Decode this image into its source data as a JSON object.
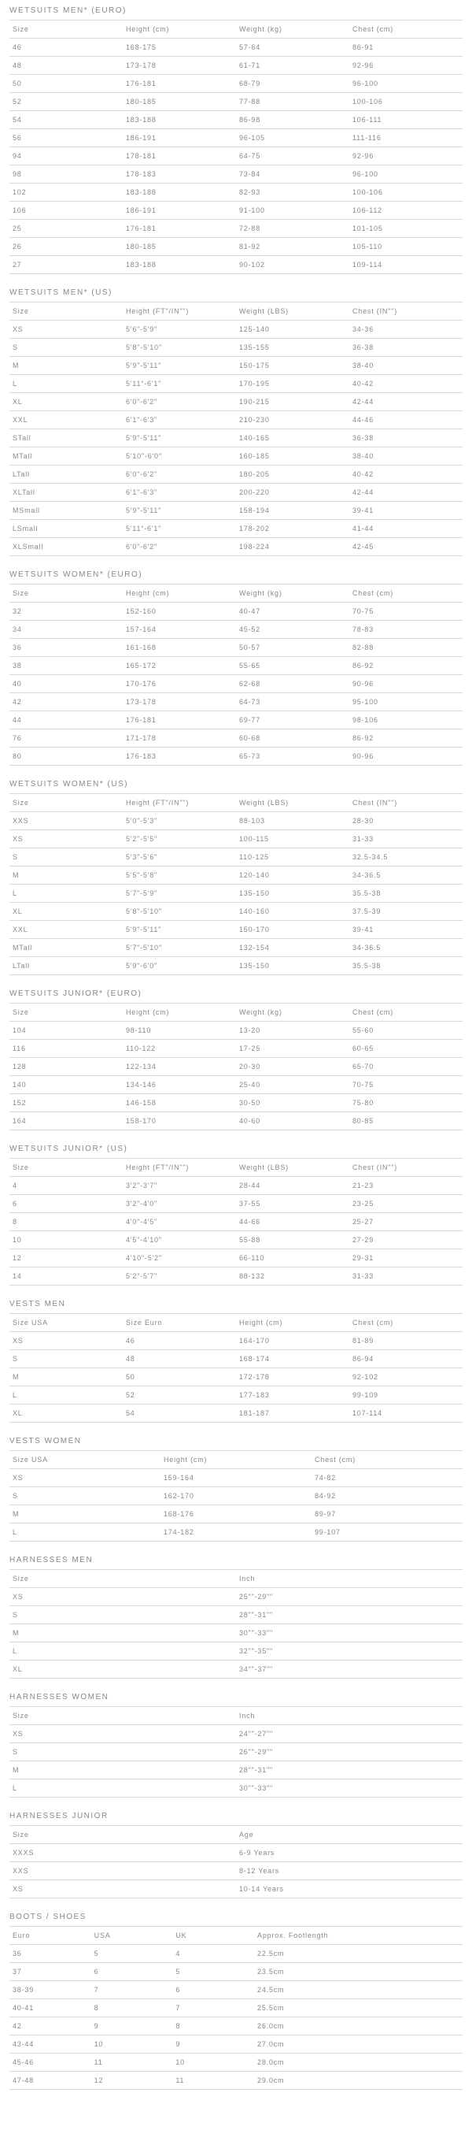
{
  "sections": [
    {
      "title": "WETSUITS MEN* (EURO)",
      "columns": [
        "Size",
        "Height (cm)",
        "Weight (kg)",
        "Chest (cm)"
      ],
      "rows": [
        [
          "46",
          "168-175",
          "57-64",
          "86-91"
        ],
        [
          "48",
          "173-178",
          "61-71",
          "92-96"
        ],
        [
          "50",
          "176-181",
          "68-79",
          "96-100"
        ],
        [
          "52",
          "180-185",
          "77-88",
          "100-106"
        ],
        [
          "54",
          "183-188",
          "86-98",
          "106-111"
        ],
        [
          "56",
          "186-191",
          "96-105",
          "111-116"
        ],
        [
          "94",
          "178-181",
          "64-75",
          "92-96"
        ],
        [
          "98",
          "178-183",
          "73-84",
          "96-100"
        ],
        [
          "102",
          "183-188",
          "82-93",
          "100-106"
        ],
        [
          "106",
          "186-191",
          "91-100",
          "106-112"
        ],
        [
          "25",
          "176-181",
          "72-88",
          "101-105"
        ],
        [
          "26",
          "180-185",
          "81-92",
          "105-110"
        ],
        [
          "27",
          "183-188",
          "90-102",
          "109-114"
        ]
      ]
    },
    {
      "title": "WETSUITS MEN* (US)",
      "columns": [
        "Size",
        "Height (FT\"/IN\"\")",
        "Weight (LBS)",
        "Chest (IN\"\")"
      ],
      "rows": [
        [
          "XS",
          "5'6\"-5'9\"",
          "125-140",
          "34-36"
        ],
        [
          "S",
          "5'8\"-5'10\"",
          "135-155",
          "36-38"
        ],
        [
          "M",
          "5'9\"-5'11\"",
          "150-175",
          "38-40"
        ],
        [
          "L",
          "5'11\"-6'1\"",
          "170-195",
          "40-42"
        ],
        [
          "XL",
          "6'0\"-6'2\"",
          "190-215",
          "42-44"
        ],
        [
          "XXL",
          "6'1\"-6'3\"",
          "210-230",
          "44-46"
        ],
        [
          "STall",
          "5'9\"-5'11\"",
          "140-165",
          "36-38"
        ],
        [
          "MTall",
          "5'10\"-6'0\"",
          "160-185",
          "38-40"
        ],
        [
          "LTall",
          "6'0\"-6'2\"",
          "180-205",
          "40-42"
        ],
        [
          "XLTall",
          "6'1\"-6'3\"",
          "200-220",
          "42-44"
        ],
        [
          "MSmall",
          "5'9\"-5'11\"",
          "158-194",
          "39-41"
        ],
        [
          "LSmall",
          "5'11\"-6'1\"",
          "178-202",
          "41-44"
        ],
        [
          "XLSmall",
          "6'0\"-6'2\"",
          "198-224",
          "42-45"
        ]
      ]
    },
    {
      "title": "WETSUITS WOMEN* (EURO)",
      "columns": [
        "Size",
        "Height (cm)",
        "Weight (kg)",
        "Chest (cm)"
      ],
      "rows": [
        [
          "32",
          "152-160",
          "40-47",
          "70-75"
        ],
        [
          "34",
          "157-164",
          "45-52",
          "78-83"
        ],
        [
          "36",
          "161-168",
          "50-57",
          "82-88"
        ],
        [
          "38",
          "165-172",
          "55-65",
          "86-92"
        ],
        [
          "40",
          "170-176",
          "62-68",
          "90-96"
        ],
        [
          "42",
          "173-178",
          "64-73",
          "95-100"
        ],
        [
          "44",
          "176-181",
          "69-77",
          "98-106"
        ],
        [
          "76",
          "171-178",
          "60-68",
          "86-92"
        ],
        [
          "80",
          "176-183",
          "65-73",
          "90-96"
        ]
      ]
    },
    {
      "title": "WETSUITS WOMEN* (US)",
      "columns": [
        "Size",
        "Height (FT\"/IN\"\")",
        "Weight (LBS)",
        "Chest (IN\"\")"
      ],
      "rows": [
        [
          "XXS",
          "5'0\"-5'3\"",
          "88-103",
          "28-30"
        ],
        [
          "XS",
          "5'2\"-5'5\"",
          "100-115",
          "31-33"
        ],
        [
          "S",
          "5'3\"-5'6\"",
          "110-125",
          "32.5-34.5"
        ],
        [
          "M",
          "5'5\"-5'8\"",
          "120-140",
          "34-36.5"
        ],
        [
          "L",
          "5'7\"-5'9\"",
          "135-150",
          "35.5-38"
        ],
        [
          "XL",
          "5'8\"-5'10\"",
          "140-160",
          "37.5-39"
        ],
        [
          "XXL",
          "5'9\"-5'11\"",
          "150-170",
          "39-41"
        ],
        [
          "MTall",
          "5'7\"-5'10\"",
          "132-154",
          "34-36.5"
        ],
        [
          "LTall",
          "5'9\"-6'0\"",
          "135-150",
          "35.5-38"
        ]
      ]
    },
    {
      "title": "WETSUITS JUNIOR* (EURO)",
      "columns": [
        "Size",
        "Height (cm)",
        "Weight (kg)",
        "Chest (cm)"
      ],
      "rows": [
        [
          "104",
          "98-110",
          "13-20",
          "55-60"
        ],
        [
          "116",
          "110-122",
          "17-25",
          "60-65"
        ],
        [
          "128",
          "122-134",
          "20-30",
          "65-70"
        ],
        [
          "140",
          "134-146",
          "25-40",
          "70-75"
        ],
        [
          "152",
          "146-158",
          "30-50",
          "75-80"
        ],
        [
          "164",
          "158-170",
          "40-60",
          "80-85"
        ]
      ]
    },
    {
      "title": "WETSUITS JUNIOR* (US)",
      "columns": [
        "Size",
        "Height (FT\"/IN\"\")",
        "Weight (LBS)",
        "Chest (IN\"\")"
      ],
      "rows": [
        [
          "4",
          "3'2\"-3'7\"",
          "28-44",
          "21-23"
        ],
        [
          "6",
          "3'2\"-4'0\"",
          "37-55",
          "23-25"
        ],
        [
          "8",
          "4'0\"-4'5\"",
          "44-66",
          "25-27"
        ],
        [
          "10",
          "4'5\"-4'10\"",
          "55-88",
          "27-29"
        ],
        [
          "12",
          "4'10\"-5'2\"",
          "66-110",
          "29-31"
        ],
        [
          "14",
          "5'2\"-5'7\"",
          "88-132",
          "31-33"
        ]
      ]
    },
    {
      "title": "VESTS MEN",
      "columns": [
        "Size USA",
        "Size Euro",
        "Height (cm)",
        "Chest (cm)"
      ],
      "rows": [
        [
          "XS",
          "46",
          "164-170",
          "81-89"
        ],
        [
          "S",
          "48",
          "168-174",
          "86-94"
        ],
        [
          "M",
          "50",
          "172-178",
          "92-102"
        ],
        [
          "L",
          "52",
          "177-183",
          "99-109"
        ],
        [
          "XL",
          "54",
          "181-187",
          "107-114"
        ]
      ]
    },
    {
      "title": "VESTS WOMEN",
      "columns": [
        "Size USA",
        "Height (cm)",
        "Chest (cm)"
      ],
      "rows": [
        [
          "XS",
          "159-164",
          "74-82"
        ],
        [
          "S",
          "162-170",
          "84-92"
        ],
        [
          "M",
          "168-176",
          "89-97"
        ],
        [
          "L",
          "174-182",
          "99-107"
        ]
      ]
    },
    {
      "title": "HARNESSES MEN",
      "columns": [
        "Size",
        "Inch"
      ],
      "rows": [
        [
          "XS",
          "25\"\"-29\"\""
        ],
        [
          "S",
          "28\"\"-31\"\""
        ],
        [
          "M",
          "30\"\"-33\"\""
        ],
        [
          "L",
          "32\"\"-35\"\""
        ],
        [
          "XL",
          "34\"\"-37\"\""
        ]
      ]
    },
    {
      "title": "HARNESSES WOMEN",
      "columns": [
        "Size",
        "Inch"
      ],
      "rows": [
        [
          "XS",
          "24\"\"-27\"\""
        ],
        [
          "S",
          "26\"\"-29\"\""
        ],
        [
          "M",
          "28\"\"-31\"\""
        ],
        [
          "L",
          "30\"\"-33\"\""
        ]
      ]
    },
    {
      "title": "HARNESSES JUNIOR",
      "columns": [
        "Size",
        "Age"
      ],
      "rows": [
        [
          "XXXS",
          "6-9 Years"
        ],
        [
          "XXS",
          "8-12 Years"
        ],
        [
          "XS",
          "10-14 Years"
        ]
      ]
    },
    {
      "title": "BOOTS / SHOES",
      "columns": [
        "Euro",
        "USA",
        "UK",
        "Approx. Footlength"
      ],
      "colWidths": [
        "18%",
        "18%",
        "18%",
        "46%"
      ],
      "rows": [
        [
          "36",
          "5",
          "4",
          "22.5cm"
        ],
        [
          "37",
          "6",
          "5",
          "23.5cm"
        ],
        [
          "38-39",
          "7",
          "6",
          "24.5cm"
        ],
        [
          "40-41",
          "8",
          "7",
          "25.5cm"
        ],
        [
          "42",
          "9",
          "8",
          "26.0cm"
        ],
        [
          "43-44",
          "10",
          "9",
          "27.0cm"
        ],
        [
          "45-46",
          "11",
          "10",
          "28.0cm"
        ],
        [
          "47-48",
          "12",
          "11",
          "29.0cm"
        ]
      ]
    }
  ]
}
